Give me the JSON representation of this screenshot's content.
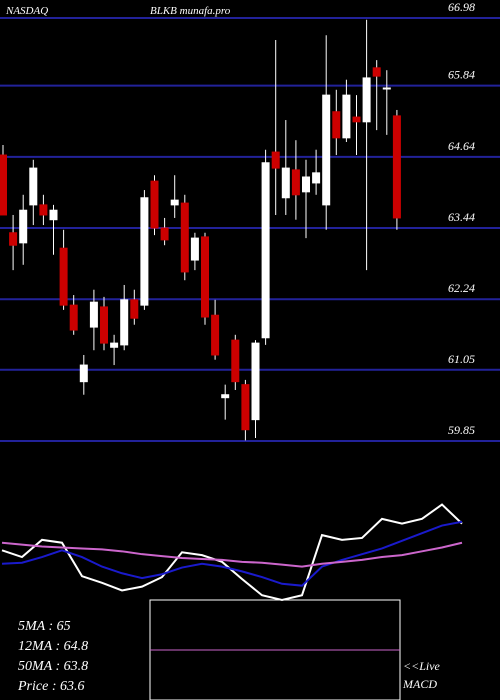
{
  "chart_data": [
    {
      "type": "candlestick",
      "exchange": "NASDAQ",
      "title": "BLKB munafa.pro",
      "up_color": "#ffffff",
      "down_color": "#cc0000",
      "wick_color": "#ffffff",
      "grid_color": "#22229a",
      "grid": true,
      "ylim": [
        59.85,
        66.98
      ],
      "yticks": [
        66.98,
        65.84,
        64.64,
        63.44,
        62.24,
        61.05,
        59.85
      ],
      "open": [
        64.67,
        63.36,
        63.19,
        63.83,
        63.83,
        63.58,
        63.1,
        62.14,
        60.85,
        61.77,
        62.11,
        61.43,
        61.47,
        62.23,
        62.14,
        64.23,
        63.44,
        63.83,
        63.86,
        62.9,
        63.29,
        61.97,
        60.58,
        61.55,
        60.8,
        60.21,
        61.59,
        64.72,
        63.95,
        64.42,
        64.05,
        64.2,
        63.83,
        65.4,
        64.96,
        65.31,
        65.23,
        66.14,
        65.8,
        65.33
      ],
      "high": [
        64.84,
        63.66,
        64.0,
        64.59,
        64.0,
        63.83,
        63.41,
        62.31,
        61.3,
        62.4,
        62.28,
        61.64,
        62.48,
        62.4,
        64.08,
        64.33,
        63.61,
        64.33,
        64.0,
        63.36,
        63.36,
        62.23,
        60.8,
        61.64,
        60.88,
        61.55,
        64.76,
        66.61,
        65.26,
        64.92,
        64.59,
        64.76,
        66.69,
        65.77,
        65.94,
        65.68,
        66.95,
        66.27,
        66.1,
        65.43
      ],
      "low": [
        63.66,
        62.73,
        62.82,
        63.49,
        63.49,
        62.99,
        62.06,
        61.64,
        60.63,
        61.38,
        61.38,
        61.13,
        61.38,
        61.81,
        62.06,
        63.32,
        63.15,
        63.61,
        62.56,
        62.73,
        61.81,
        61.22,
        60.21,
        60.71,
        59.86,
        59.9,
        61.47,
        63.66,
        63.66,
        63.58,
        63.27,
        64.0,
        63.41,
        64.67,
        64.89,
        64.67,
        62.73,
        65.09,
        65.01,
        63.41
      ],
      "close": [
        63.66,
        63.15,
        63.74,
        64.45,
        63.66,
        63.74,
        62.14,
        61.72,
        61.13,
        62.19,
        61.5,
        61.5,
        62.23,
        61.92,
        63.95,
        63.44,
        63.24,
        63.91,
        62.7,
        63.27,
        61.94,
        61.3,
        60.63,
        60.85,
        60.04,
        61.5,
        64.54,
        64.45,
        64.45,
        64.0,
        64.3,
        64.37,
        65.68,
        64.96,
        65.68,
        65.23,
        65.97,
        66.0,
        65.8,
        63.61
      ]
    },
    {
      "type": "line",
      "ylim": [
        0,
        110
      ],
      "x": [
        0,
        20,
        40,
        60,
        80,
        100,
        120,
        140,
        160,
        180,
        200,
        220,
        240,
        260,
        280,
        300,
        320,
        340,
        360,
        380,
        400,
        420,
        440,
        460
      ],
      "series": [
        {
          "color": "#ffffff",
          "values": [
            52,
            45,
            63,
            60,
            25,
            18,
            10,
            14,
            24,
            50,
            47,
            40,
            22,
            5,
            0,
            5,
            68,
            63,
            65,
            85,
            80,
            85,
            100,
            80
          ]
        },
        {
          "color": "#1a1acc",
          "values": [
            38,
            39,
            45,
            52,
            45,
            35,
            28,
            23,
            27,
            34,
            38,
            35,
            30,
            24,
            17,
            15,
            35,
            42,
            48,
            54,
            62,
            70,
            78,
            82
          ]
        },
        {
          "color": "#cc66cc",
          "values": [
            60,
            58,
            56,
            55,
            54,
            53,
            51,
            48,
            46,
            44,
            43,
            42,
            40,
            39,
            37,
            35,
            38,
            40,
            42,
            45,
            47,
            51,
            55,
            60
          ]
        }
      ],
      "labels": [
        "5MA : 65",
        "12MA : 64.8",
        "50MA : 63.8",
        "Price   : 63.6"
      ],
      "macd_note": [
        "<<Live",
        "MACD"
      ]
    }
  ]
}
